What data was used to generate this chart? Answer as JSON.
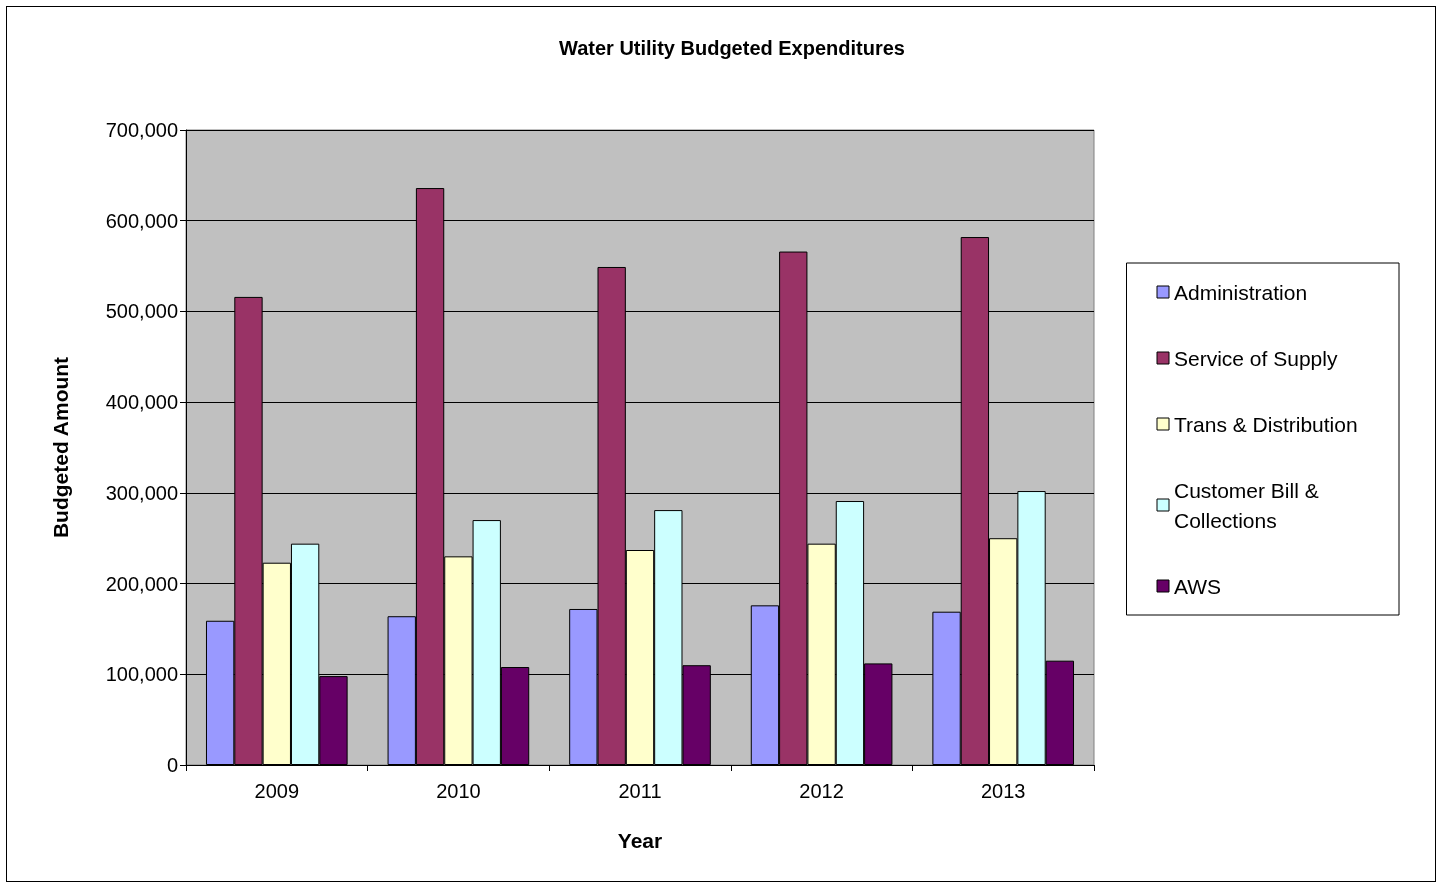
{
  "chart_data": {
    "type": "bar",
    "title": "Water Utility Budgeted Expenditures",
    "xlabel": "Year",
    "ylabel": "Budgeted Amount",
    "categories": [
      "2009",
      "2010",
      "2011",
      "2012",
      "2013"
    ],
    "series": [
      {
        "name": "Administration",
        "color": "#9999ff",
        "values": [
          159000,
          164000,
          172000,
          176000,
          169000
        ]
      },
      {
        "name": "Service of Supply",
        "color": "#993366",
        "values": [
          516000,
          636000,
          549000,
          566000,
          582000
        ]
      },
      {
        "name": "Trans & Distribution",
        "color": "#ffffcc",
        "values": [
          223000,
          230000,
          237000,
          244000,
          250000
        ]
      },
      {
        "name": "Customer Bill & Collections",
        "color": "#ccffff",
        "values": [
          244000,
          270000,
          281000,
          291000,
          302000
        ]
      },
      {
        "name": "AWS",
        "color": "#660066",
        "values": [
          98000,
          108000,
          110000,
          112000,
          115000
        ]
      }
    ],
    "ylim": [
      0,
      700000
    ],
    "yticks": [
      0,
      {
        "value": 100000,
        "label": "100,000"
      },
      {
        "value": 200000,
        "label": "200,000"
      },
      {
        "value": 300000,
        "label": "300,000"
      },
      {
        "value": 400000,
        "label": "400,000"
      },
      {
        "value": 500000,
        "label": "500,000"
      },
      {
        "value": 600000,
        "label": "600,000"
      },
      {
        "value": 700000,
        "label": "700,000"
      }
    ],
    "grid": "y",
    "legend": "right"
  }
}
